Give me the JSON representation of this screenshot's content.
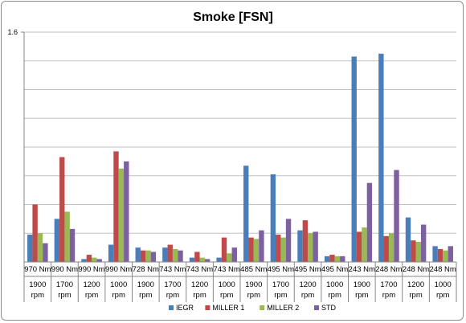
{
  "chart_data": {
    "type": "bar",
    "title": "Smoke [FSN]",
    "y_ticks": [
      "1.6"
    ],
    "ylim": [
      0,
      1.6
    ],
    "grid": true,
    "legend_position": "bottom",
    "categories": [
      {
        "load": "970 Nm",
        "speed": "1900",
        "unit": "rpm"
      },
      {
        "load": "990 Nm",
        "speed": "1700",
        "unit": "rpm"
      },
      {
        "load": "990 Nm",
        "speed": "1200",
        "unit": "rpm"
      },
      {
        "load": "990 Nm",
        "speed": "1000",
        "unit": "rpm"
      },
      {
        "load": "728 Nm",
        "speed": "1900",
        "unit": "rpm"
      },
      {
        "load": "743 Nm",
        "speed": "1700",
        "unit": "rpm"
      },
      {
        "load": "743 Nm",
        "speed": "1200",
        "unit": "rpm"
      },
      {
        "load": "743 Nm",
        "speed": "1000",
        "unit": "rpm"
      },
      {
        "load": "485 Nm",
        "speed": "1900",
        "unit": "rpm"
      },
      {
        "load": "495 Nm",
        "speed": "1700",
        "unit": "rpm"
      },
      {
        "load": "495 Nm",
        "speed": "1200",
        "unit": "rpm"
      },
      {
        "load": "495 Nm",
        "speed": "1000",
        "unit": "rpm"
      },
      {
        "load": "243 Nm",
        "speed": "1900",
        "unit": "rpm"
      },
      {
        "load": "248 Nm",
        "speed": "1700",
        "unit": "rpm"
      },
      {
        "load": "248 Nm",
        "speed": "1200",
        "unit": "rpm"
      },
      {
        "load": "248 Nm",
        "speed": "1000",
        "unit": "rpm"
      }
    ],
    "series": [
      {
        "name": "IEGR",
        "color": "#4a7ebb",
        "values": [
          0.19,
          0.3,
          0.02,
          0.12,
          0.1,
          0.1,
          0.03,
          0.03,
          0.67,
          0.61,
          0.22,
          0.04,
          1.43,
          1.45,
          0.31,
          0.11
        ]
      },
      {
        "name": "MILLER 1",
        "color": "#be4b48",
        "values": [
          0.4,
          0.73,
          0.05,
          0.77,
          0.08,
          0.12,
          0.07,
          0.17,
          0.17,
          0.19,
          0.29,
          0.05,
          0.21,
          0.18,
          0.15,
          0.09
        ]
      },
      {
        "name": "MILLER 2",
        "color": "#98b954",
        "values": [
          0.2,
          0.35,
          0.03,
          0.65,
          0.08,
          0.09,
          0.03,
          0.06,
          0.16,
          0.17,
          0.2,
          0.04,
          0.24,
          0.2,
          0.14,
          0.08
        ]
      },
      {
        "name": "STD",
        "color": "#7d60a0",
        "values": [
          0.13,
          0.23,
          0.02,
          0.7,
          0.07,
          0.08,
          0.02,
          0.1,
          0.22,
          0.3,
          0.21,
          0.04,
          0.55,
          0.64,
          0.26,
          0.11
        ]
      }
    ]
  }
}
